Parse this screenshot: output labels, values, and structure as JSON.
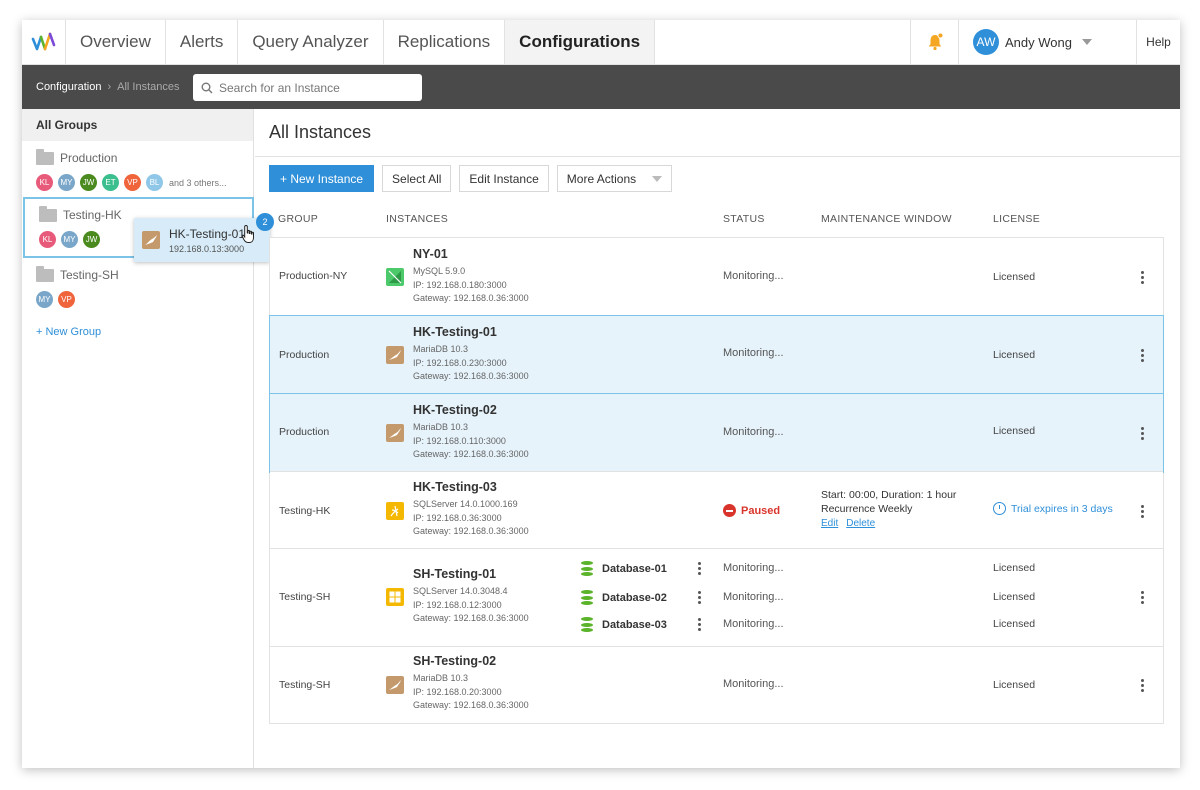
{
  "nav": {
    "tabs": [
      "Overview",
      "Alerts",
      "Query Analyzer",
      "Replications",
      "Configurations"
    ],
    "active_tab": "Configurations",
    "user_initials": "AW",
    "user_name": "Andy Wong",
    "help": "Help",
    "colors": {
      "accent": "#2f8fd8",
      "bell": "#f5a623"
    }
  },
  "breadcrumb": {
    "root": "Configuration",
    "current": "All Instances"
  },
  "search": {
    "placeholder": "Search for an Instance",
    "value": ""
  },
  "sidebar": {
    "all_groups": "All Groups",
    "groups": [
      {
        "name": "Production",
        "members": [
          "KL",
          "MY",
          "JW",
          "ET",
          "VP",
          "BL"
        ],
        "more": "and 3 others..."
      },
      {
        "name": "Testing-HK",
        "members": [
          "KL",
          "MY",
          "JW"
        ]
      },
      {
        "name": "Testing-SH",
        "members": [
          "MY",
          "VP"
        ]
      }
    ],
    "new_group": "+ New Group"
  },
  "drag_preview": {
    "name": "HK-Testing-01",
    "ip": "192.168.0.13:3000",
    "count": "2"
  },
  "main": {
    "title": "All Instances",
    "toolbar": {
      "new_instance": "+ New Instance",
      "select_all": "Select All",
      "edit_instance": "Edit Instance",
      "more_actions": "More Actions"
    },
    "columns": {
      "group": "GROUP",
      "instances": "INSTANCES",
      "status": "STATUS",
      "maintenance": "MAINTENANCE WINDOW",
      "license": "LICENSE"
    },
    "rows": [
      {
        "group": "Production-NY",
        "name": "NY-01",
        "db_icon": "mysql-icon",
        "version": "MySQL 5.9.0",
        "ip": "IP: 192.168.0.180:3000",
        "gateway": "Gateway: 192.168.0.36:3000",
        "status": "Monitoring...",
        "license": "Licensed"
      },
      {
        "group": "Production",
        "name": "HK-Testing-01",
        "db_icon": "mariadb-icon",
        "version": "MariaDB 10.3",
        "ip": "IP: 192.168.0.230:3000",
        "gateway": "Gateway: 192.168.0.36:3000",
        "status": "Monitoring...",
        "license": "Licensed",
        "highlighted": true
      },
      {
        "group": "Production",
        "name": "HK-Testing-02",
        "db_icon": "mariadb-icon",
        "version": "MariaDB 10.3",
        "ip": "IP: 192.168.0.110:3000",
        "gateway": "Gateway: 192.168.0.36:3000",
        "status": "Monitoring...",
        "license": "Licensed",
        "highlighted": true
      },
      {
        "group": "Testing-HK",
        "name": "HK-Testing-03",
        "db_icon": "sqlserver-icon",
        "version": "SQLServer 14.0.1000.169",
        "ip": "IP: 192.168.0.36:3000",
        "gateway": "Gateway: 192.168.0.36:3000",
        "status": "Paused",
        "maintenance": {
          "line1": "Start: 00:00, Duration: 1 hour",
          "line2": "Recurrence Weekly",
          "edit": "Edit",
          "delete": "Delete"
        },
        "license": "Trial expires in 3 days"
      },
      {
        "group": "Testing-SH",
        "name": "SH-Testing-01",
        "db_icon": "windows-sqlserver-icon",
        "version": "SQLServer 14.0.3048.4",
        "ip": "IP: 192.168.0.12:3000",
        "gateway": "Gateway: 192.168.0.36:3000",
        "databases": [
          {
            "name": "Database-01",
            "status": "Monitoring...",
            "license": "Licensed"
          },
          {
            "name": "Database-02",
            "status": "Monitoring...",
            "license": "Licensed"
          },
          {
            "name": "Database-03",
            "status": "Monitoring...",
            "license": "Licensed"
          }
        ]
      },
      {
        "group": "Testing-SH",
        "name": "SH-Testing-02",
        "db_icon": "mariadb-icon",
        "version": "MariaDB 10.3",
        "ip": "IP: 192.168.0.20:3000",
        "gateway": "Gateway: 192.168.0.36:3000",
        "status": "Monitoring...",
        "license": "Licensed"
      }
    ]
  }
}
